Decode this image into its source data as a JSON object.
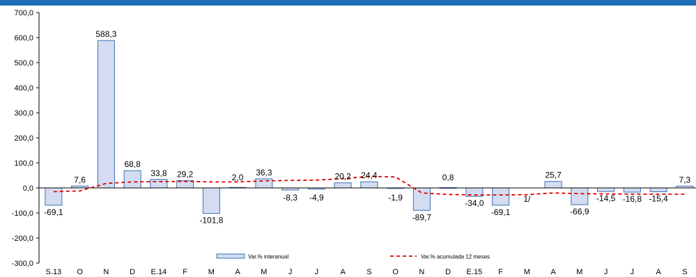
{
  "colors": {
    "band": "#1f6fb7",
    "bar_fill": "#d3dcf0",
    "bar_stroke": "#3c6fb4",
    "line": "#e00000",
    "axis": "#000000"
  },
  "chart_data": {
    "type": "bar",
    "categories": [
      "S.13",
      "O",
      "N",
      "D",
      "E.14",
      "F",
      "M",
      "A",
      "M",
      "J",
      "J",
      "A",
      "S",
      "O",
      "N",
      "D",
      "E.15",
      "F",
      "M",
      "A",
      "M",
      "J",
      "J",
      "A",
      "S"
    ],
    "ylim": [
      -300,
      700
    ],
    "yticks": [
      "700,0",
      "600,0",
      "500,0",
      "400,0",
      "300,0",
      "200,0",
      "100,0",
      "0,0",
      "-100,0",
      "-200,0",
      "-300,0"
    ],
    "ytick_values": [
      700,
      600,
      500,
      400,
      300,
      200,
      100,
      0,
      -100,
      -200,
      -300
    ],
    "grid": false,
    "legend_position": "bottom",
    "series": [
      {
        "name": "Var.% interanual",
        "kind": "bar",
        "values": [
          -69.1,
          7.6,
          588.3,
          68.8,
          33.8,
          29.2,
          -101.8,
          2.0,
          36.3,
          -8.3,
          -4.9,
          20.2,
          24.4,
          -1.9,
          -89.7,
          0.8,
          -34.0,
          -69.1,
          null,
          25.7,
          -66.9,
          -14.5,
          -16.8,
          -15.4,
          7.3
        ],
        "labels": [
          "-69,1",
          "7,6",
          "588,3",
          "68,8",
          "33,8",
          "29,2",
          "-101,8",
          "2,0",
          "36,3",
          "-8,3",
          "-4,9",
          "20,2",
          "24,4",
          "-1,9",
          "-89,7",
          "0,8",
          "-34,0",
          "-69,1",
          "1/",
          "25,7",
          "-66,9",
          "-14,5",
          "-16,8",
          "-15,4",
          "7,3"
        ]
      },
      {
        "name": "Var.% acumulada 12 meses",
        "kind": "line",
        "style": "dashed",
        "values": [
          -15,
          -12,
          18,
          24,
          25,
          26,
          24,
          24,
          28,
          30,
          31,
          37,
          46,
          44,
          -20,
          -26,
          -28,
          -28,
          -27,
          -20,
          -23,
          -24,
          -25,
          -25,
          -25
        ]
      }
    ]
  }
}
